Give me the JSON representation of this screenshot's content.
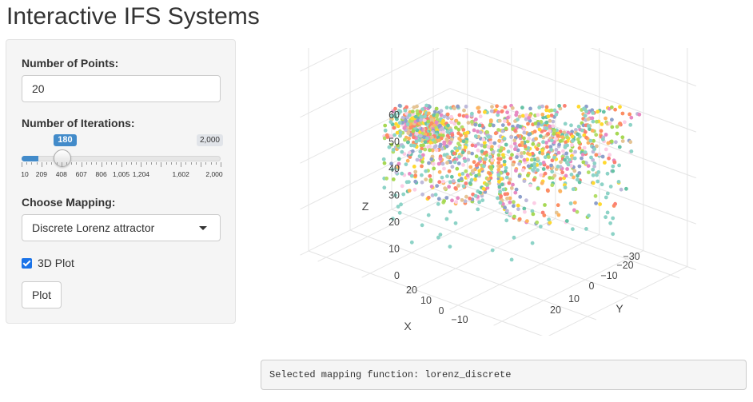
{
  "app": {
    "title": "Interactive IFS Systems"
  },
  "sidebar": {
    "points_label": "Number of Points:",
    "points_value": "20",
    "iterations_label": "Number of Iterations:",
    "iterations_slider": {
      "min": 10,
      "max": 2000,
      "value": 180,
      "value_text": "180",
      "max_text": "2,000",
      "ticks": [
        {
          "v": 10,
          "label": "10"
        },
        {
          "v": 209,
          "label": "209"
        },
        {
          "v": 408,
          "label": "408"
        },
        {
          "v": 607,
          "label": "607"
        },
        {
          "v": 806,
          "label": "806"
        },
        {
          "v": 1005,
          "label": "1,005"
        },
        {
          "v": 1204,
          "label": "1,204"
        },
        {
          "v": 1602,
          "label": "1,602"
        },
        {
          "v": 2000,
          "label": "2,000"
        }
      ]
    },
    "mapping_label": "Choose Mapping:",
    "mapping_selected": "Discrete Lorenz attractor",
    "plot3d_label": "3D Plot",
    "plot3d_checked": true,
    "plot_button": "Plot"
  },
  "plot": {
    "z_axis_title": "Z",
    "y_axis_title": "Y",
    "x_axis_title": "X",
    "z_ticks": [
      "0",
      "10",
      "20",
      "30",
      "40",
      "50",
      "60"
    ],
    "y_ticks": [
      "20",
      "10",
      "0",
      "−10",
      "−20",
      "−30"
    ],
    "x_ticks": [
      "20",
      "10",
      "0",
      "−10"
    ],
    "colors": [
      "#8dd3c7",
      "#fdb462",
      "#bebada",
      "#fb8072",
      "#b3de69",
      "#fccde5",
      "#e5c494",
      "#ffd92f",
      "#a6d854",
      "#e78ac3",
      "#66c2a5",
      "#fc8d62",
      "#8da0cb"
    ]
  },
  "output": {
    "text": "Selected mapping function: lorenz_discrete"
  }
}
